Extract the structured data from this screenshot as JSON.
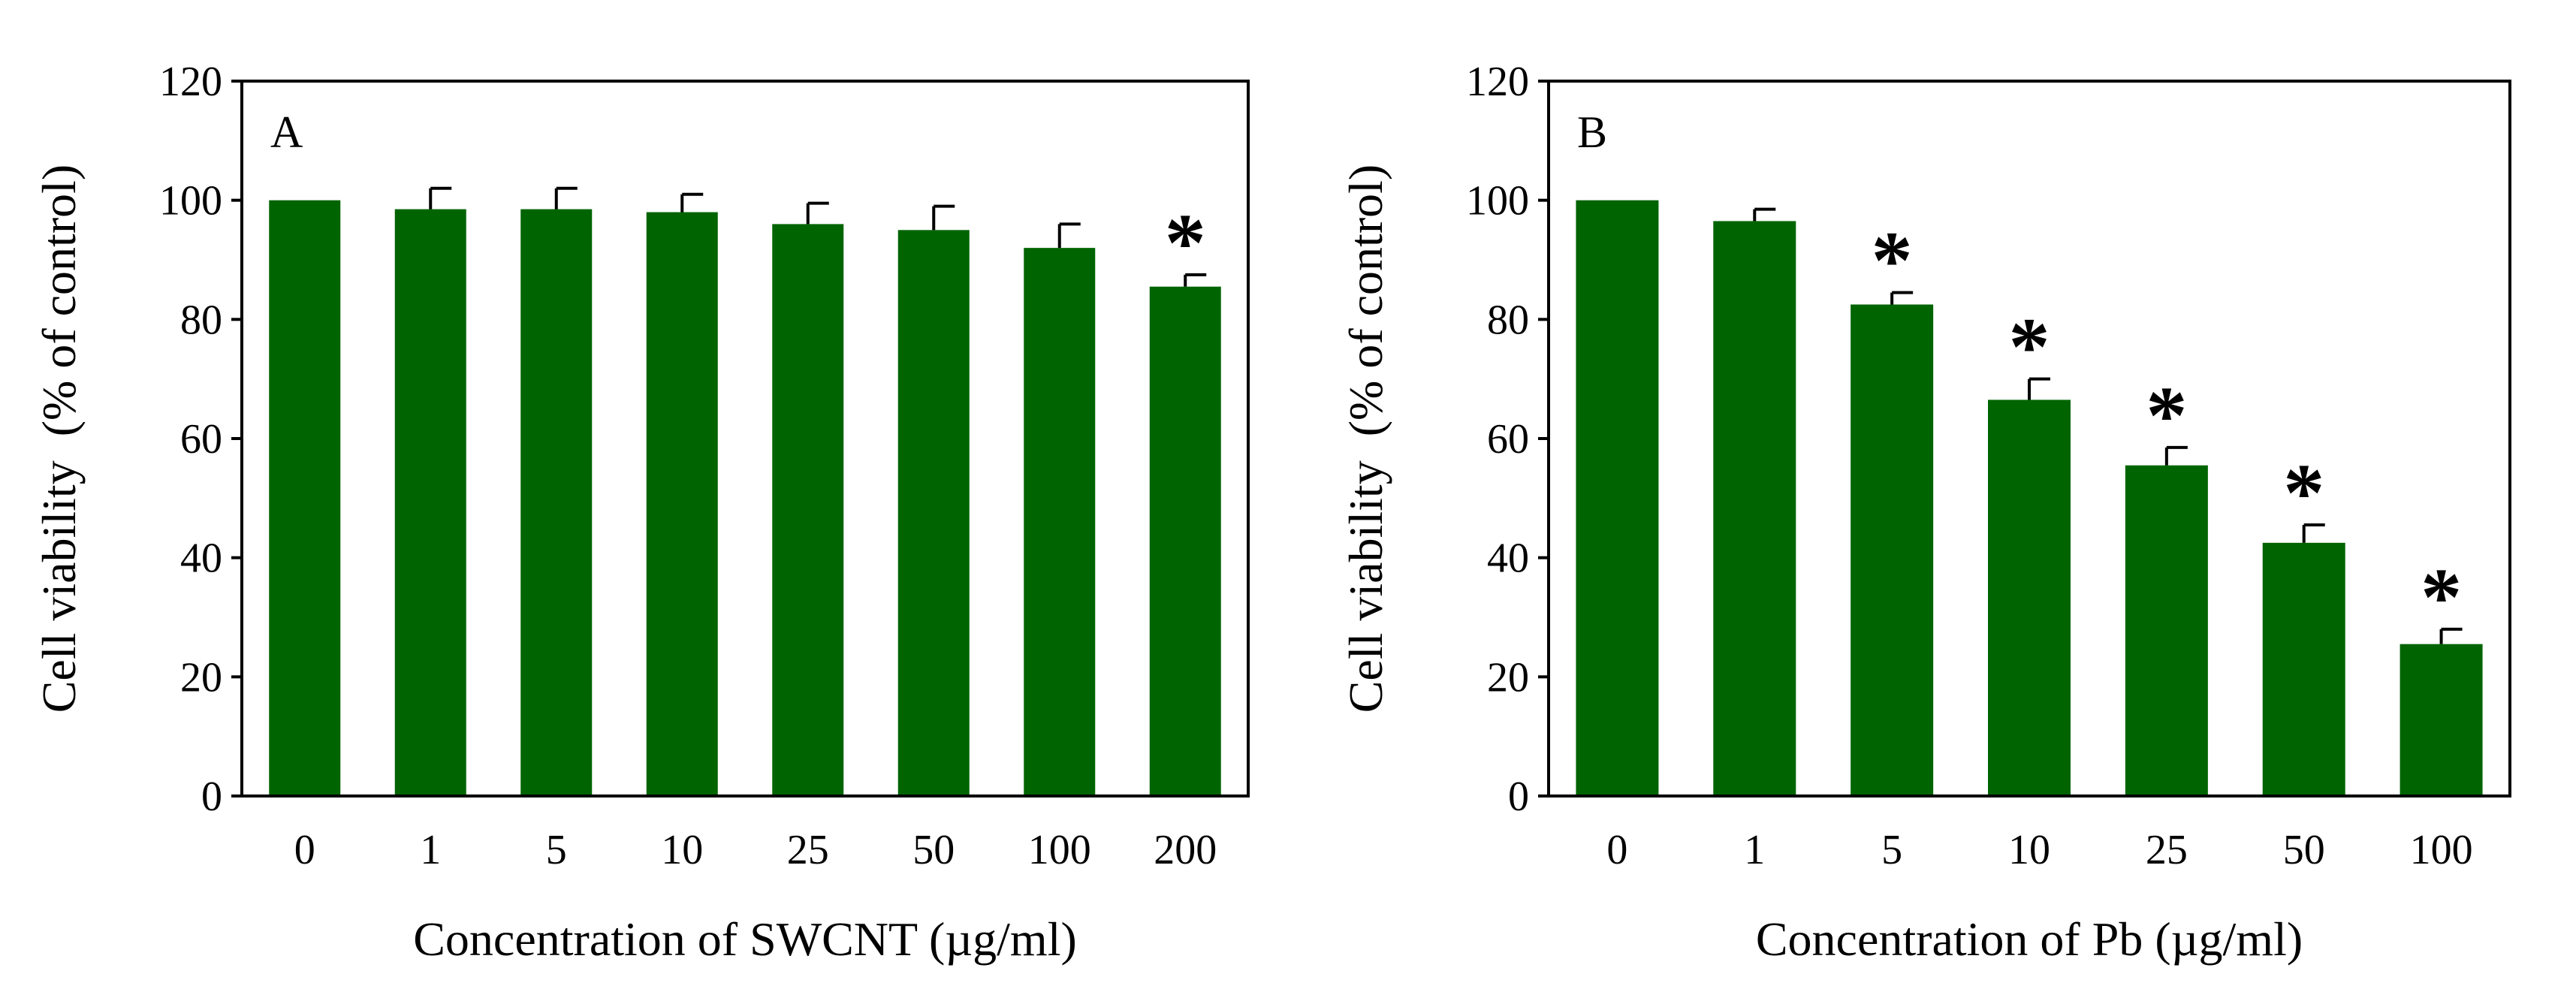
{
  "chart_data": [
    {
      "type": "bar",
      "panel_label": "A",
      "categories": [
        "0",
        "1",
        "5",
        "10",
        "25",
        "50",
        "100",
        "200"
      ],
      "values": [
        100,
        98.5,
        98.5,
        98,
        96,
        95,
        92,
        85.5
      ],
      "errors": [
        0,
        3.5,
        3.5,
        3,
        3.5,
        4,
        4,
        2
      ],
      "significant": [
        "",
        "",
        "",
        "",
        "",
        "",
        "",
        "*"
      ],
      "xlabel": "Concentration of SWCNT (µg/ml)",
      "ylabel": "Cell viability  (% of control)",
      "ylim": [
        0,
        120
      ],
      "yticks": [
        "0",
        "20",
        "40",
        "60",
        "80",
        "100",
        "120"
      ],
      "bar_color": "#006400"
    },
    {
      "type": "bar",
      "panel_label": "B",
      "categories": [
        "0",
        "1",
        "5",
        "10",
        "25",
        "50",
        "100"
      ],
      "values": [
        100,
        96.5,
        82.5,
        66.5,
        55.5,
        42.5,
        25.5
      ],
      "errors": [
        0,
        2,
        2,
        3.5,
        3,
        3,
        2.5
      ],
      "significant": [
        "",
        "",
        "*",
        "*",
        "*",
        "*",
        "*"
      ],
      "xlabel": "Concentration of Pb (µg/ml)",
      "ylabel": "Cell viability  (% of control)",
      "ylim": [
        0,
        120
      ],
      "yticks": [
        "0",
        "20",
        "40",
        "60",
        "80",
        "100",
        "120"
      ],
      "bar_color": "#006400"
    }
  ]
}
